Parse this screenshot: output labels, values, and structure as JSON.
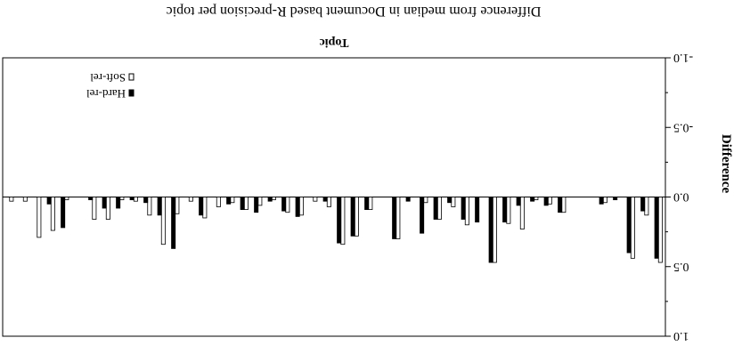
{
  "chart_data": {
    "type": "bar",
    "orientation": "rotated-180",
    "title": "Difference from median in Document based R-precision per topic",
    "xlabel": "Topic",
    "ylabel": "Difference",
    "ylim": [
      -1.0,
      1.0
    ],
    "yticks": [
      "-1.0",
      "-0.5",
      "0.0",
      "0.5",
      "1.0"
    ],
    "grid": false,
    "legend_position": "top-right",
    "series": [
      {
        "name": "Soft-rel",
        "fill": "#ffffff",
        "values": [
          0.47,
          0.13,
          0.44,
          0.0,
          0.04,
          0.0,
          0.0,
          0.11,
          0.05,
          0.02,
          0.23,
          0.19,
          0.47,
          0.0,
          0.2,
          0.07,
          0.16,
          0.04,
          0.0,
          0.3,
          0.0,
          0.09,
          0.28,
          0.34,
          0.07,
          0.03,
          0.13,
          0.11,
          0.02,
          0.06,
          0.09,
          0.04,
          0.07,
          0.15,
          0.03,
          0.12,
          0.34,
          0.13,
          0.03,
          0.02,
          0.16,
          0.16,
          0.0,
          0.02,
          0.24,
          0.29,
          0.03,
          0.03
        ]
      },
      {
        "name": "Hard-rel",
        "fill": "#000000",
        "values": [
          0.44,
          0.1,
          0.4,
          0.02,
          0.05,
          0.0,
          0.0,
          0.11,
          0.06,
          0.03,
          0.06,
          0.18,
          0.47,
          0.18,
          0.16,
          0.04,
          0.16,
          0.26,
          0.03,
          0.3,
          0.0,
          0.09,
          0.28,
          0.33,
          0.03,
          0.0,
          0.14,
          0.1,
          0.03,
          0.11,
          0.09,
          0.05,
          0.0,
          0.13,
          0.0,
          0.37,
          0.13,
          0.04,
          0.02,
          0.08,
          0.08,
          0.02,
          0.0,
          0.22,
          0.05,
          0.0,
          0.0,
          0.0
        ]
      }
    ]
  }
}
